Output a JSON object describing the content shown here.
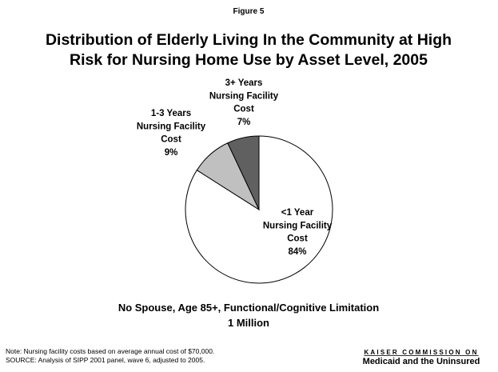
{
  "figure_label": "Figure 5",
  "chart_data": {
    "type": "pie",
    "title": "Distribution of Elderly Living In the Community at High\nRisk for Nursing Home Use by Asset Level, 2005",
    "categories": [
      "<1 Year\nNursing Facility\nCost",
      "1-3 Years\nNursing Facility\nCost",
      "3+ Years\nNursing Facility\nCost"
    ],
    "values": [
      84,
      9,
      7
    ],
    "value_labels": [
      "84%",
      "9%",
      "7%"
    ],
    "colors": [
      "#ffffff",
      "#c0c0c0",
      "#606060"
    ],
    "subtitle": "No Spouse, Age 85+, Functional/Cognitive Limitation\n1 Million"
  },
  "notes": [
    "Note: Nursing facility costs based on average annual cost of $70,000.",
    "SOURCE: Analysis of SIPP 2001 panel, wave 6, adjusted to 2005."
  ],
  "logo": {
    "line1": "KAISER COMMISSION ON",
    "line2": "Medicaid and the Uninsured"
  }
}
